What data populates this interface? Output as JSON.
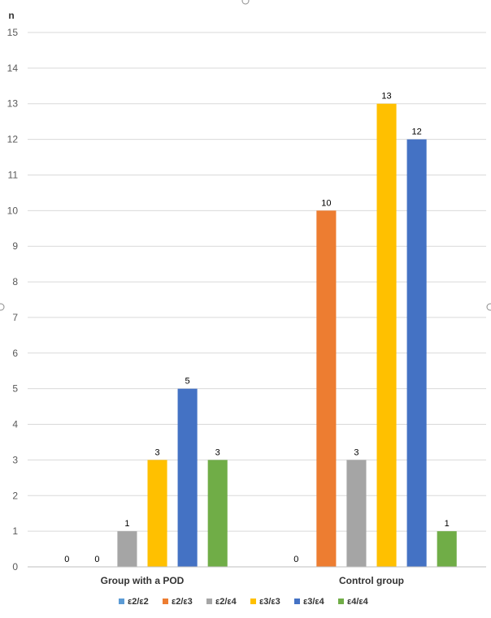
{
  "chart_data": {
    "type": "bar",
    "ylabel": "n",
    "ylim": [
      0,
      15
    ],
    "yticks": [
      "0",
      "1",
      "2",
      "3",
      "4",
      "5",
      "6",
      "7",
      "8",
      "9",
      "10",
      "11",
      "12",
      "13",
      "14",
      "15"
    ],
    "grid": true,
    "legend_position": "bottom",
    "categories": [
      "Group with a POD",
      "Control group"
    ],
    "series": [
      {
        "name": "ε2/ε2",
        "color": "#5B9BD5",
        "values": [
          0,
          0
        ]
      },
      {
        "name": "ε2/ε3",
        "color": "#ED7D31",
        "values": [
          0,
          10
        ]
      },
      {
        "name": "ε2/ε4",
        "color": "#A5A5A5",
        "values": [
          1,
          3
        ]
      },
      {
        "name": "ε3/ε3",
        "color": "#FFC000",
        "values": [
          3,
          13
        ]
      },
      {
        "name": "ε3/ε4",
        "color": "#4472C4",
        "values": [
          5,
          12
        ]
      },
      {
        "name": "ε4/ε4",
        "color": "#70AD47",
        "values": [
          3,
          1
        ]
      }
    ],
    "data_labels": [
      [
        "0",
        "0",
        "1",
        "3",
        "5",
        "3"
      ],
      [
        "0",
        "10",
        "3",
        "13",
        "12",
        "1"
      ]
    ]
  }
}
